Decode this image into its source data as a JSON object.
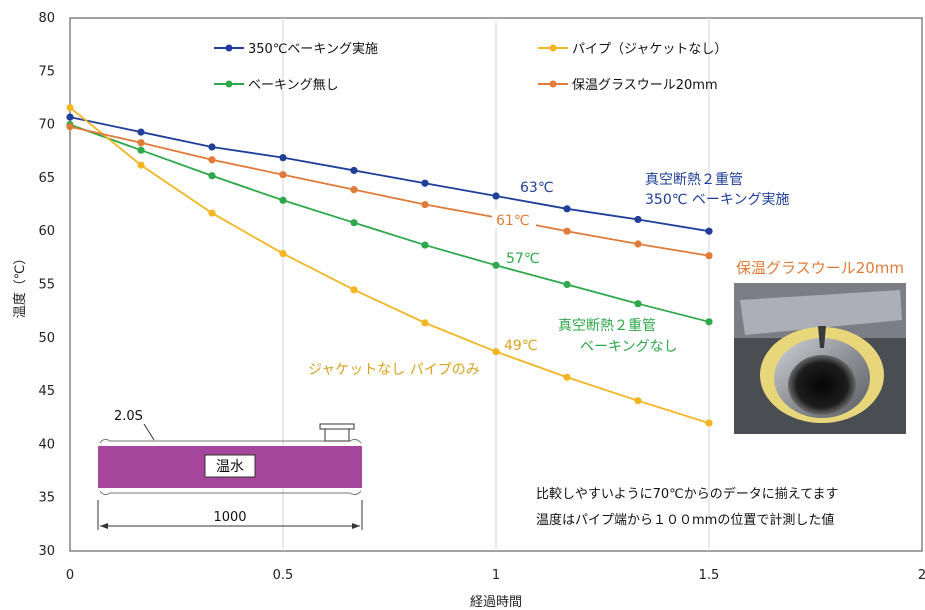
{
  "chart_data": {
    "type": "line",
    "xlabel": "経過時間",
    "ylabel": "温度（℃）",
    "xlim": [
      0,
      2
    ],
    "ylim": [
      30,
      80
    ],
    "xticks": [
      "0",
      "0.5",
      "1",
      "1.5",
      "2"
    ],
    "yticks": [
      "30",
      "35",
      "40",
      "45",
      "50",
      "55",
      "60",
      "65",
      "70",
      "75",
      "80"
    ],
    "grid": "vertical",
    "legend_position": "top",
    "x": [
      0,
      0.1667,
      0.3333,
      0.5,
      0.6667,
      0.8333,
      1,
      1.1667,
      1.3333,
      1.5
    ],
    "series": [
      {
        "name": "350℃ベーキング実施",
        "color": "#1f3f9a",
        "values": [
          70.7,
          69.3,
          67.9,
          66.9,
          65.7,
          64.5,
          63.3,
          62.1,
          61.1,
          60.0
        ]
      },
      {
        "name": "ベーキング無し",
        "color": "#2ea84a",
        "values": [
          70.0,
          67.6,
          65.2,
          62.9,
          60.8,
          58.7,
          56.8,
          55.0,
          53.2,
          51.5
        ]
      },
      {
        "name": "パイプ（ジャケットなし）",
        "color": "#f2b624",
        "values": [
          71.6,
          66.2,
          61.7,
          57.9,
          54.5,
          51.4,
          48.7,
          46.3,
          44.1,
          42.0
        ]
      },
      {
        "name": "保温グラスウール20mm",
        "color": "#e07b39",
        "values": [
          69.8,
          68.3,
          66.7,
          65.3,
          63.9,
          62.5,
          61.3,
          60.0,
          58.8,
          57.7
        ]
      }
    ],
    "annotations": {
      "val_63": {
        "text": "63℃",
        "color": "#1f3f9a"
      },
      "val_61": {
        "text": "61℃",
        "color": "#e07b39"
      },
      "val_57": {
        "text": "57℃",
        "color": "#2ea84a"
      },
      "val_49": {
        "text": "49℃",
        "color": "#d9a320"
      },
      "label_baking_1": {
        "text": "真空断熱２重管",
        "color": "#1f3f9a"
      },
      "label_baking_2": {
        "text": "350℃ ベーキング実施",
        "color": "#1f3f9a"
      },
      "label_nobake_1": {
        "text": "真空断熱２重管",
        "color": "#2ea84a"
      },
      "label_nobake_2": {
        "text": "ベーキングなし",
        "color": "#2ea84a"
      },
      "label_pipe": {
        "text": "ジャケットなし パイプのみ",
        "color": "#d9a320"
      },
      "label_glasswool": {
        "text": "保温グラスウール20mm",
        "color": "#e07b39"
      }
    },
    "notes": [
      "比較しやすいように70℃からのデータに揃えてます",
      "温度はパイプ端から１００mmの位置で計測した値"
    ],
    "diagram": {
      "thickness_label": "2.0S",
      "fluid_label": "温水",
      "length_label": "1000"
    }
  }
}
